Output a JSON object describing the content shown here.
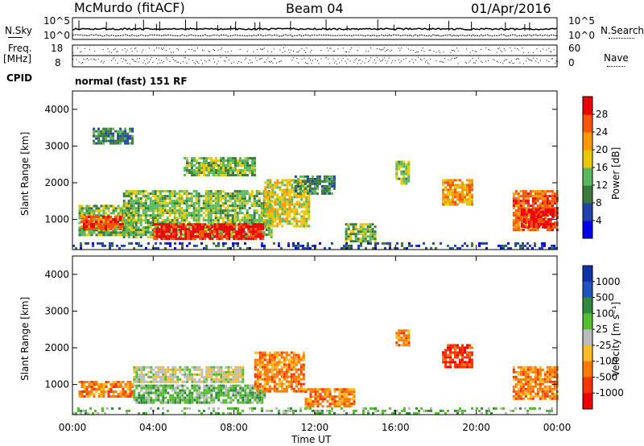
{
  "header": {
    "station": "McMurdo (fitACF)",
    "beam": "Beam 04",
    "date": "01/Apr/2016"
  },
  "top_panels": {
    "nsky_label": "N.Sky",
    "nsearch_label": "N.Search",
    "noise_ticks_left": [
      "10^5",
      "10^0"
    ],
    "noise_ticks_right": [
      "10^5",
      "10^0"
    ],
    "freq_label": "Freq.",
    "freq_unit": "[MHz]",
    "freq_ticks": [
      "18",
      "8"
    ],
    "nave_label": "Nave",
    "nave_ticks": [
      "60",
      "0"
    ],
    "cpid_label": "CPID",
    "cpid_text": "normal (fast) 151 RF"
  },
  "chart_data": [
    {
      "type": "heatmap",
      "name": "power",
      "ylabel": "Slant Range [km]",
      "ylim": [
        180,
        4500
      ],
      "yticks": [
        1000,
        2000,
        3000,
        4000
      ],
      "xlim": [
        0,
        24
      ],
      "colorbar": {
        "label": "Power [dB]",
        "ticks": [
          "4",
          "8",
          "12",
          "16",
          "20",
          "24",
          "28"
        ],
        "colors": [
          "#0000ee",
          "#2244aa",
          "#3b7a3b",
          "#5cb85c",
          "#e8c800",
          "#ff9900",
          "#ff5500",
          "#ee0000"
        ]
      },
      "regions": [
        {
          "t0": 0.0,
          "t1": 24.0,
          "r0": 200,
          "r1": 380,
          "level": 1
        },
        {
          "t0": 0.3,
          "t1": 3.0,
          "r0": 600,
          "r1": 1400,
          "level": 3
        },
        {
          "t0": 0.4,
          "t1": 2.5,
          "r0": 750,
          "r1": 1100,
          "level": 6
        },
        {
          "t0": 2.5,
          "t1": 9.8,
          "r0": 500,
          "r1": 1800,
          "level": 3
        },
        {
          "t0": 4.0,
          "t1": 9.5,
          "r0": 500,
          "r1": 900,
          "level": 7
        },
        {
          "t0": 9.5,
          "t1": 11.7,
          "r0": 800,
          "r1": 2100,
          "level": 4
        },
        {
          "t0": 1.0,
          "t1": 3.0,
          "r0": 3100,
          "r1": 3500,
          "level": 2
        },
        {
          "t0": 5.5,
          "t1": 9.0,
          "r0": 2200,
          "r1": 2700,
          "level": 3
        },
        {
          "t0": 11.0,
          "t1": 13.0,
          "r0": 1700,
          "r1": 2200,
          "level": 2
        },
        {
          "t0": 13.5,
          "t1": 15.0,
          "r0": 400,
          "r1": 900,
          "level": 3
        },
        {
          "t0": 16.0,
          "t1": 16.6,
          "r0": 2000,
          "r1": 2600,
          "level": 3
        },
        {
          "t0": 18.3,
          "t1": 19.8,
          "r0": 1400,
          "r1": 2100,
          "level": 5
        },
        {
          "t0": 21.8,
          "t1": 24.0,
          "r0": 700,
          "r1": 1800,
          "level": 6
        },
        {
          "t0": 22.2,
          "t1": 23.8,
          "r0": 800,
          "r1": 1300,
          "level": 7
        }
      ]
    },
    {
      "type": "heatmap",
      "name": "velocity",
      "ylabel": "Slant Range [km]",
      "ylim": [
        180,
        4500
      ],
      "yticks": [
        1000,
        2000,
        3000,
        4000
      ],
      "xlim": [
        0,
        24
      ],
      "xlabel": "Time UT",
      "xticks": [
        "00:00",
        "04:00",
        "08:00",
        "12:00",
        "16:00",
        "20:00",
        "00:00"
      ],
      "colorbar": {
        "label": "Velocity [m s⁻¹]",
        "ticks": [
          "1000",
          "500",
          "100",
          "25",
          "-25",
          "-100",
          "-500",
          "-1000"
        ],
        "colors": [
          "#1133aa",
          "#2255bb",
          "#2f8a3a",
          "#55bb33",
          "#bbbbbb",
          "#ffbb22",
          "#ff7a00",
          "#ff3300",
          "#ee0000"
        ]
      },
      "regions": [
        {
          "t0": 0.0,
          "t1": 24.0,
          "r0": 200,
          "r1": 380,
          "level": 3
        },
        {
          "t0": 0.3,
          "t1": 3.0,
          "r0": 700,
          "r1": 1100,
          "level": 6
        },
        {
          "t0": 3.0,
          "t1": 9.5,
          "r0": 500,
          "r1": 1000,
          "level": 3
        },
        {
          "t0": 3.0,
          "t1": 8.5,
          "r0": 1100,
          "r1": 1500,
          "level": 4
        },
        {
          "t0": 9.0,
          "t1": 11.5,
          "r0": 800,
          "r1": 1900,
          "level": 6
        },
        {
          "t0": 11.5,
          "t1": 14.0,
          "r0": 400,
          "r1": 900,
          "level": 6
        },
        {
          "t0": 16.0,
          "t1": 16.6,
          "r0": 2000,
          "r1": 2500,
          "level": 6
        },
        {
          "t0": 18.3,
          "t1": 19.8,
          "r0": 1500,
          "r1": 2100,
          "level": 7
        },
        {
          "t0": 21.8,
          "t1": 24.0,
          "r0": 600,
          "r1": 1500,
          "level": 6
        }
      ]
    }
  ]
}
